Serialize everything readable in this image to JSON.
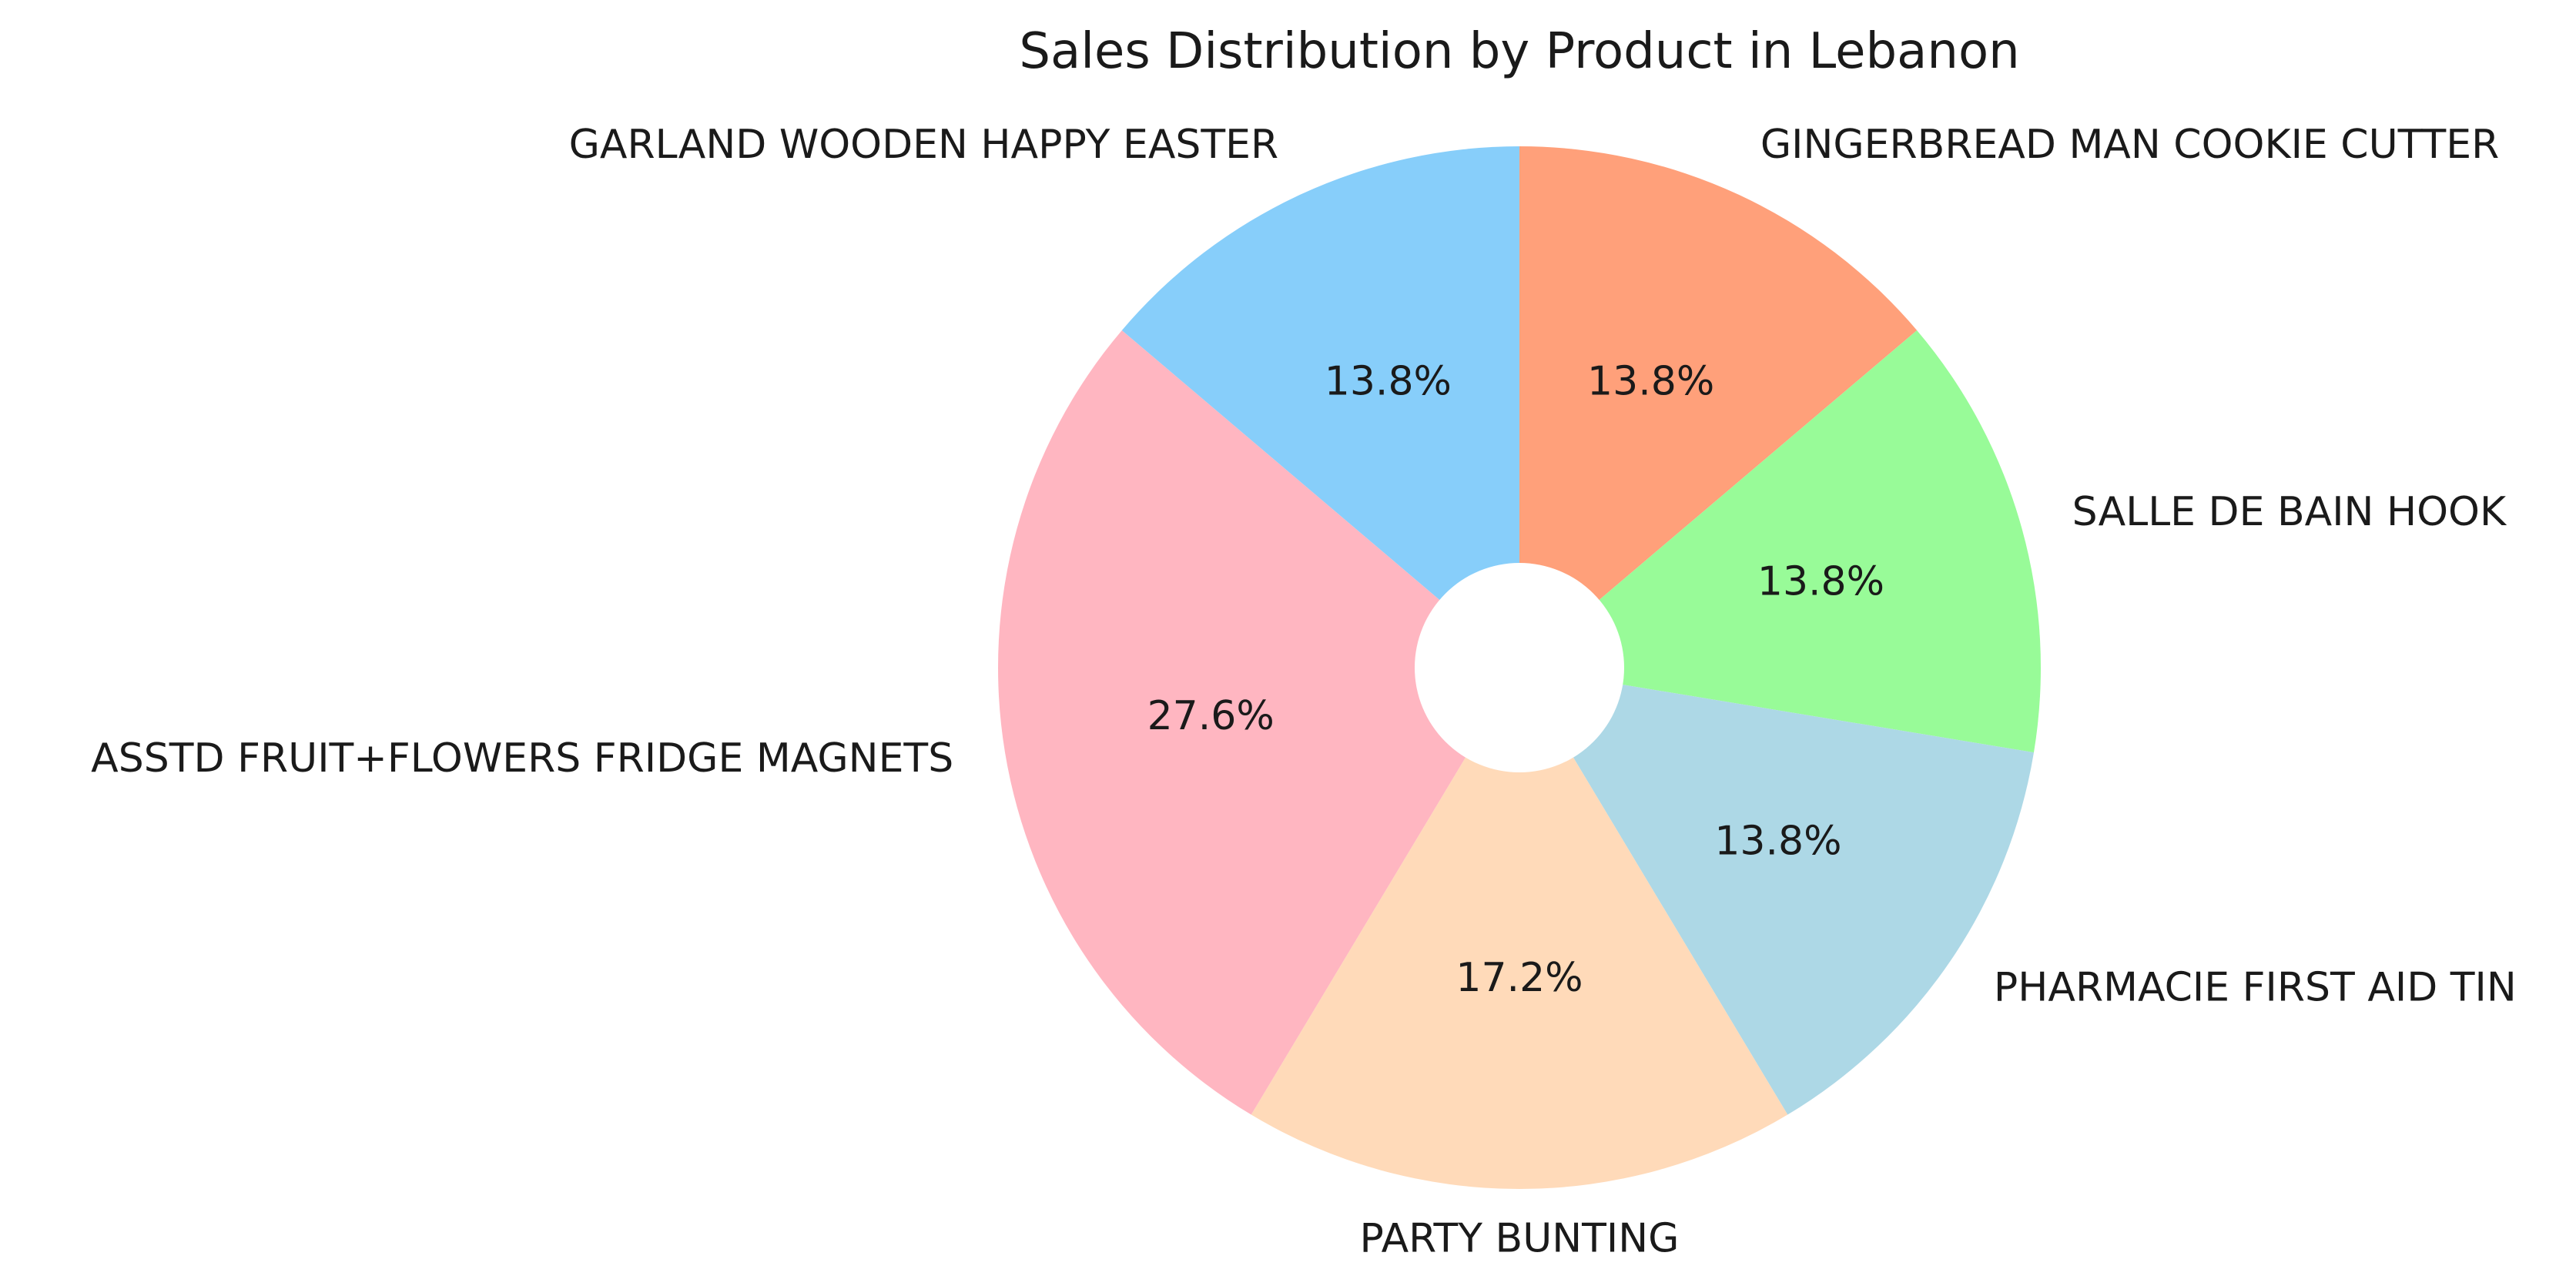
{
  "chart_data": {
    "type": "pie",
    "title": "Sales Distribution by Product in Lebanon",
    "donut_hole": true,
    "start_angle_deg": 90,
    "direction": "clockwise",
    "slices": [
      {
        "label": "GINGERBREAD MAN COOKIE CUTTER",
        "value": 13.8,
        "pct_label": "13.8%",
        "color": "#FFA07A"
      },
      {
        "label": "SALLE DE BAIN HOOK",
        "value": 13.8,
        "pct_label": "13.8%",
        "color": "#98FB98"
      },
      {
        "label": "PHARMACIE FIRST AID TIN",
        "value": 13.8,
        "pct_label": "13.8%",
        "color": "#ADD8E6"
      },
      {
        "label": "PARTY BUNTING",
        "value": 17.2,
        "pct_label": "17.2%",
        "color": "#FFDAB9"
      },
      {
        "label": "ASSTD FRUIT+FLOWERS FRIDGE MAGNETS",
        "value": 27.6,
        "pct_label": "27.6%",
        "color": "#FFB6C1"
      },
      {
        "label": "GARLAND WOODEN HAPPY EASTER",
        "value": 13.8,
        "pct_label": "13.8%",
        "color": "#87CEFA"
      }
    ]
  }
}
